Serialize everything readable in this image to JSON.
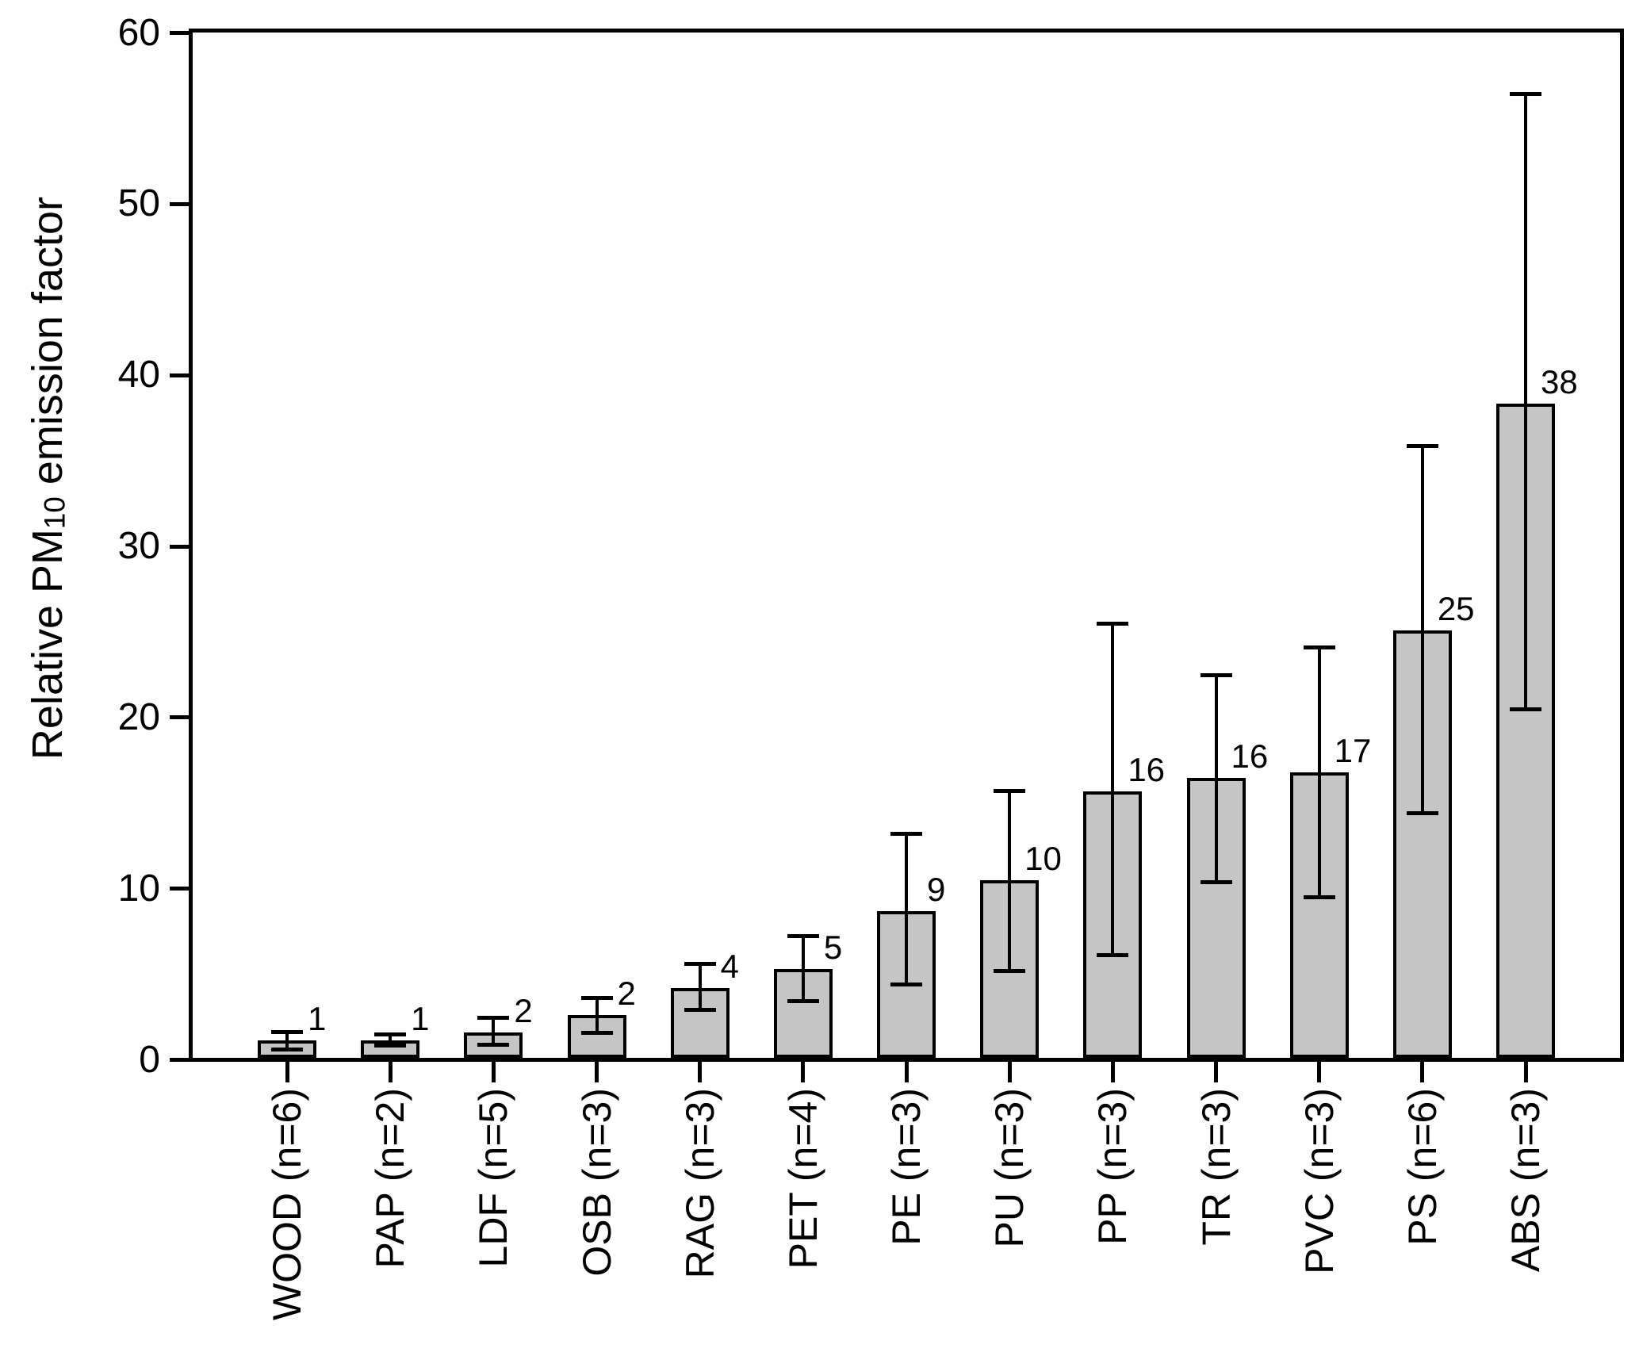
{
  "chart_data": {
    "type": "bar",
    "title": "",
    "xlabel": "",
    "ylabel_prefix": "Relative PM",
    "ylabel_sub": "10",
    "ylabel_suffix": " emission factor",
    "categories": [
      "WOOD (n=6)",
      "PAP (n=2)",
      "LDF (n=5)",
      "OSB (n=3)",
      "RAG (n=3)",
      "PET (n=4)",
      "PE (n=3)",
      "PU (n=3)",
      "PP (n=3)",
      "TR (n=3)",
      "PVC (n=3)",
      "PS (n=6)",
      "ABS (n=3)"
    ],
    "values": [
      1.0,
      1.0,
      1.5,
      2.5,
      4.1,
      5.2,
      8.6,
      10.4,
      15.6,
      16.4,
      16.7,
      25.0,
      38.3
    ],
    "value_labels": [
      "1",
      "1",
      "2",
      "2",
      "4",
      "5",
      "9",
      "10",
      "16",
      "16",
      "17",
      "25",
      "38"
    ],
    "error_low": [
      0.5,
      0.7,
      0.75,
      1.45,
      2.8,
      3.3,
      4.3,
      5.1,
      6.0,
      10.3,
      9.4,
      14.3,
      20.4
    ],
    "error_high": [
      1.5,
      1.35,
      2.35,
      3.5,
      5.5,
      7.1,
      13.1,
      15.6,
      25.4,
      22.4,
      24.0,
      35.8,
      56.4
    ],
    "ylim": [
      0,
      60
    ],
    "yticks": [
      0,
      10,
      20,
      30,
      40,
      50,
      60
    ],
    "ytick_labels": [
      "0",
      "10",
      "20",
      "30",
      "40",
      "50",
      "60"
    ],
    "grid": false,
    "legend": "none",
    "bar_color": "#c5c5c5",
    "bar_border_color": "#000000",
    "axis_color": "#000000",
    "background": "#ffffff"
  }
}
